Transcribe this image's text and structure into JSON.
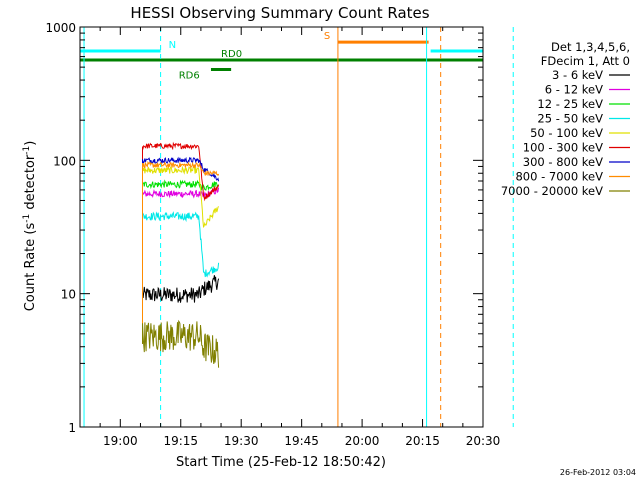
{
  "chart_data": {
    "type": "line",
    "title": "HESSI Observing Summary Count Rates",
    "xlabel": "Start Time (25-Feb-12 18:50:42)",
    "ylabel_main": "Count Rate (s",
    "ylabel_sup1": "-1",
    "ylabel_mid": " detector",
    "ylabel_sup2": "-1",
    "ylabel_end": ")",
    "yscale": "log",
    "ylim": [
      1,
      1000
    ],
    "xlim_minutes_after_1850": [
      0,
      100
    ],
    "x_ticks": [
      {
        "label": "19:00",
        "minutes": 10
      },
      {
        "label": "19:15",
        "minutes": 25
      },
      {
        "label": "19:30",
        "minutes": 40
      },
      {
        "label": "19:45",
        "minutes": 55
      },
      {
        "label": "20:00",
        "minutes": 70
      },
      {
        "label": "20:15",
        "minutes": 85
      },
      {
        "label": "20:30",
        "minutes": 100
      }
    ],
    "y_ticks": [
      {
        "label": "1",
        "value": 1
      },
      {
        "label": "10",
        "value": 10
      },
      {
        "label": "100",
        "value": 100
      },
      {
        "label": "1000",
        "value": 1000
      }
    ],
    "legend_header": [
      "Det 1,3,4,5,6,",
      "FDecim 1, Att 0"
    ],
    "series": [
      {
        "name": "3 - 6 keV",
        "color": "#000000",
        "start": 15.5,
        "split": 29.5,
        "end": 34.5,
        "v1": 9.8,
        "v2": 10.8,
        "v3": 12.5,
        "noise": 0.06
      },
      {
        "name": "6 - 12 keV",
        "color": "#e000e0",
        "start": 15.5,
        "split": 29.5,
        "end": 34.5,
        "v1": 56,
        "v2": 54,
        "v3": 60,
        "noise": 0.025
      },
      {
        "name": "12 - 25 keV",
        "color": "#00e000",
        "start": 15.5,
        "split": 29.5,
        "end": 34.5,
        "v1": 66,
        "v2": 62,
        "v3": 68,
        "noise": 0.025
      },
      {
        "name": "25 - 50 keV",
        "color": "#00e8e8",
        "start": 15.5,
        "split": 29.5,
        "end": 34.5,
        "v1": 38,
        "v2": 14,
        "v3": 16,
        "noise": 0.03
      },
      {
        "name": "50 - 100 keV",
        "color": "#e0e000",
        "start": 15.5,
        "split": 29.5,
        "end": 34.5,
        "v1": 84,
        "v2": 31,
        "v3": 45,
        "noise": 0.025
      },
      {
        "name": "100 - 300 keV",
        "color": "#e00000",
        "start": 15.5,
        "split": 29.5,
        "end": 34.5,
        "v1": 128,
        "v2": 52,
        "v3": 64,
        "noise": 0.02
      },
      {
        "name": "300 - 800 keV",
        "color": "#0000c8",
        "start": 15.5,
        "split": 29.5,
        "end": 34.5,
        "v1": 100,
        "v2": 86,
        "v3": 72,
        "noise": 0.02
      },
      {
        "name": "800 - 7000 keV",
        "color": "#ff8c00",
        "start": 15.5,
        "split": 29.5,
        "end": 34.5,
        "v1": 92,
        "v2": 80,
        "v3": 80,
        "noise": 0.02
      },
      {
        "name": "7000 - 20000 keV",
        "color": "#808000",
        "start": 15.5,
        "split": 29.5,
        "end": 34.5,
        "v1": 4.8,
        "v2": 4.0,
        "v3": 3.6,
        "noise": 0.12
      }
    ],
    "flag_bars": [
      {
        "label": "N",
        "color": "#00ffff",
        "x0": 0,
        "x1": 20,
        "level": 660,
        "label_x": 22
      },
      {
        "label": "N",
        "color": "#00ffff",
        "x0": 87,
        "x1": 100,
        "level": 660,
        "label_x": null
      },
      {
        "label": "RD0",
        "color": "#008000",
        "x0": 0,
        "x1": 100,
        "level": 565,
        "label_x": 35
      },
      {
        "label": "RD6",
        "color": "#008000",
        "x0": 32.5,
        "x1": 37.5,
        "level": 480,
        "label_x": 24.5
      },
      {
        "label": "S",
        "color": "#ff7f00",
        "x0": 64,
        "x1": 86.5,
        "level": 770,
        "label_x": 60.5
      }
    ],
    "vertical_lines": [
      {
        "color": "#00ffff",
        "minutes": 20,
        "dashed": true
      },
      {
        "color": "#00ffff",
        "minutes": 86,
        "dashed": false
      },
      {
        "color": "#00ffff",
        "minutes": 107.5,
        "dashed": true
      },
      {
        "color": "#ff7f00",
        "minutes": 64,
        "dashed": false
      },
      {
        "color": "#ff7f00",
        "minutes": 89.5,
        "dashed": true
      },
      {
        "color": "#00ffff",
        "minutes": 1,
        "dashed": false
      }
    ],
    "grid": false
  },
  "footer": {
    "timestamp": "26-Feb-2012 03:04"
  }
}
